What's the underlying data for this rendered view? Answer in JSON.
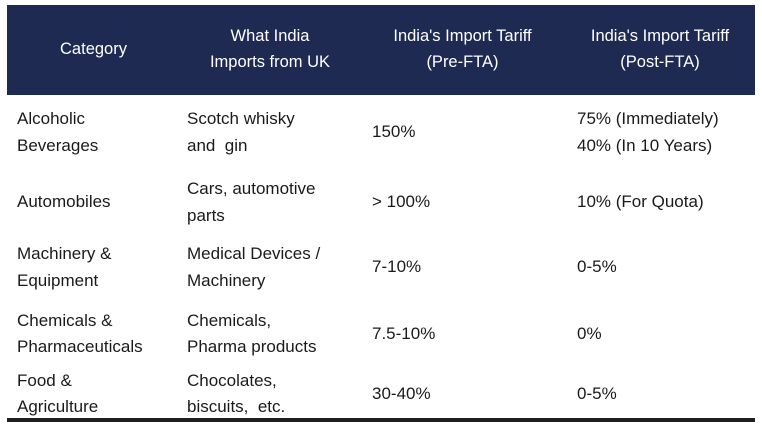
{
  "theme": {
    "accent_color": "#1F2A52",
    "header_text_color": "#FFFFFF",
    "body_text_color": "#1A1A1A",
    "bottom_border_color": "#1F1F1F"
  },
  "table": {
    "columns": [
      {
        "label": "Category"
      },
      {
        "label": "What India\nImports from UK"
      },
      {
        "label": "India's Import Tariff\n(Pre-FTA)"
      },
      {
        "label": "India's Import Tariff\n(Post-FTA)"
      }
    ],
    "rows": [
      {
        "category": "Alcoholic\nBeverages",
        "imports": "Scotch whisky\nand  gin",
        "pre_fta": "150%",
        "post_fta": "75% (Immediately)\n40% (In 10 Years)"
      },
      {
        "category": "Automobiles",
        "imports": "Cars, automotive\nparts",
        "pre_fta": "> 100%",
        "post_fta": "10% (For Quota)"
      },
      {
        "category": "Machinery &\nEquipment",
        "imports": "Medical Devices /\nMachinery",
        "pre_fta": "7-10%",
        "post_fta": "0-5%"
      },
      {
        "category": "Chemicals &\nPharmaceuticals",
        "imports": "Chemicals,\nPharma products",
        "pre_fta": "7.5-10%",
        "post_fta": "0%"
      },
      {
        "category": "Food &\nAgriculture",
        "imports": "Chocolates,\nbiscuits,  etc.",
        "pre_fta": "30-40%",
        "post_fta": "0-5%"
      }
    ]
  },
  "chart_data": {
    "type": "table",
    "columns": [
      "Category",
      "What India Imports from UK",
      "India's Import Tariff (Pre-FTA)",
      "India's Import Tariff (Post-FTA)"
    ],
    "rows": [
      [
        "Alcoholic Beverages",
        "Scotch whisky and gin",
        "150%",
        "75% (Immediately); 40% (In 10 Years)"
      ],
      [
        "Automobiles",
        "Cars, automotive parts",
        "> 100%",
        "10% (For Quota)"
      ],
      [
        "Machinery & Equipment",
        "Medical Devices / Machinery",
        "7-10%",
        "0-5%"
      ],
      [
        "Chemicals & Pharmaceuticals",
        "Chemicals, Pharma products",
        "7.5-10%",
        "0%"
      ],
      [
        "Food & Agriculture",
        "Chocolates, biscuits, etc.",
        "30-40%",
        "0-5%"
      ]
    ]
  }
}
